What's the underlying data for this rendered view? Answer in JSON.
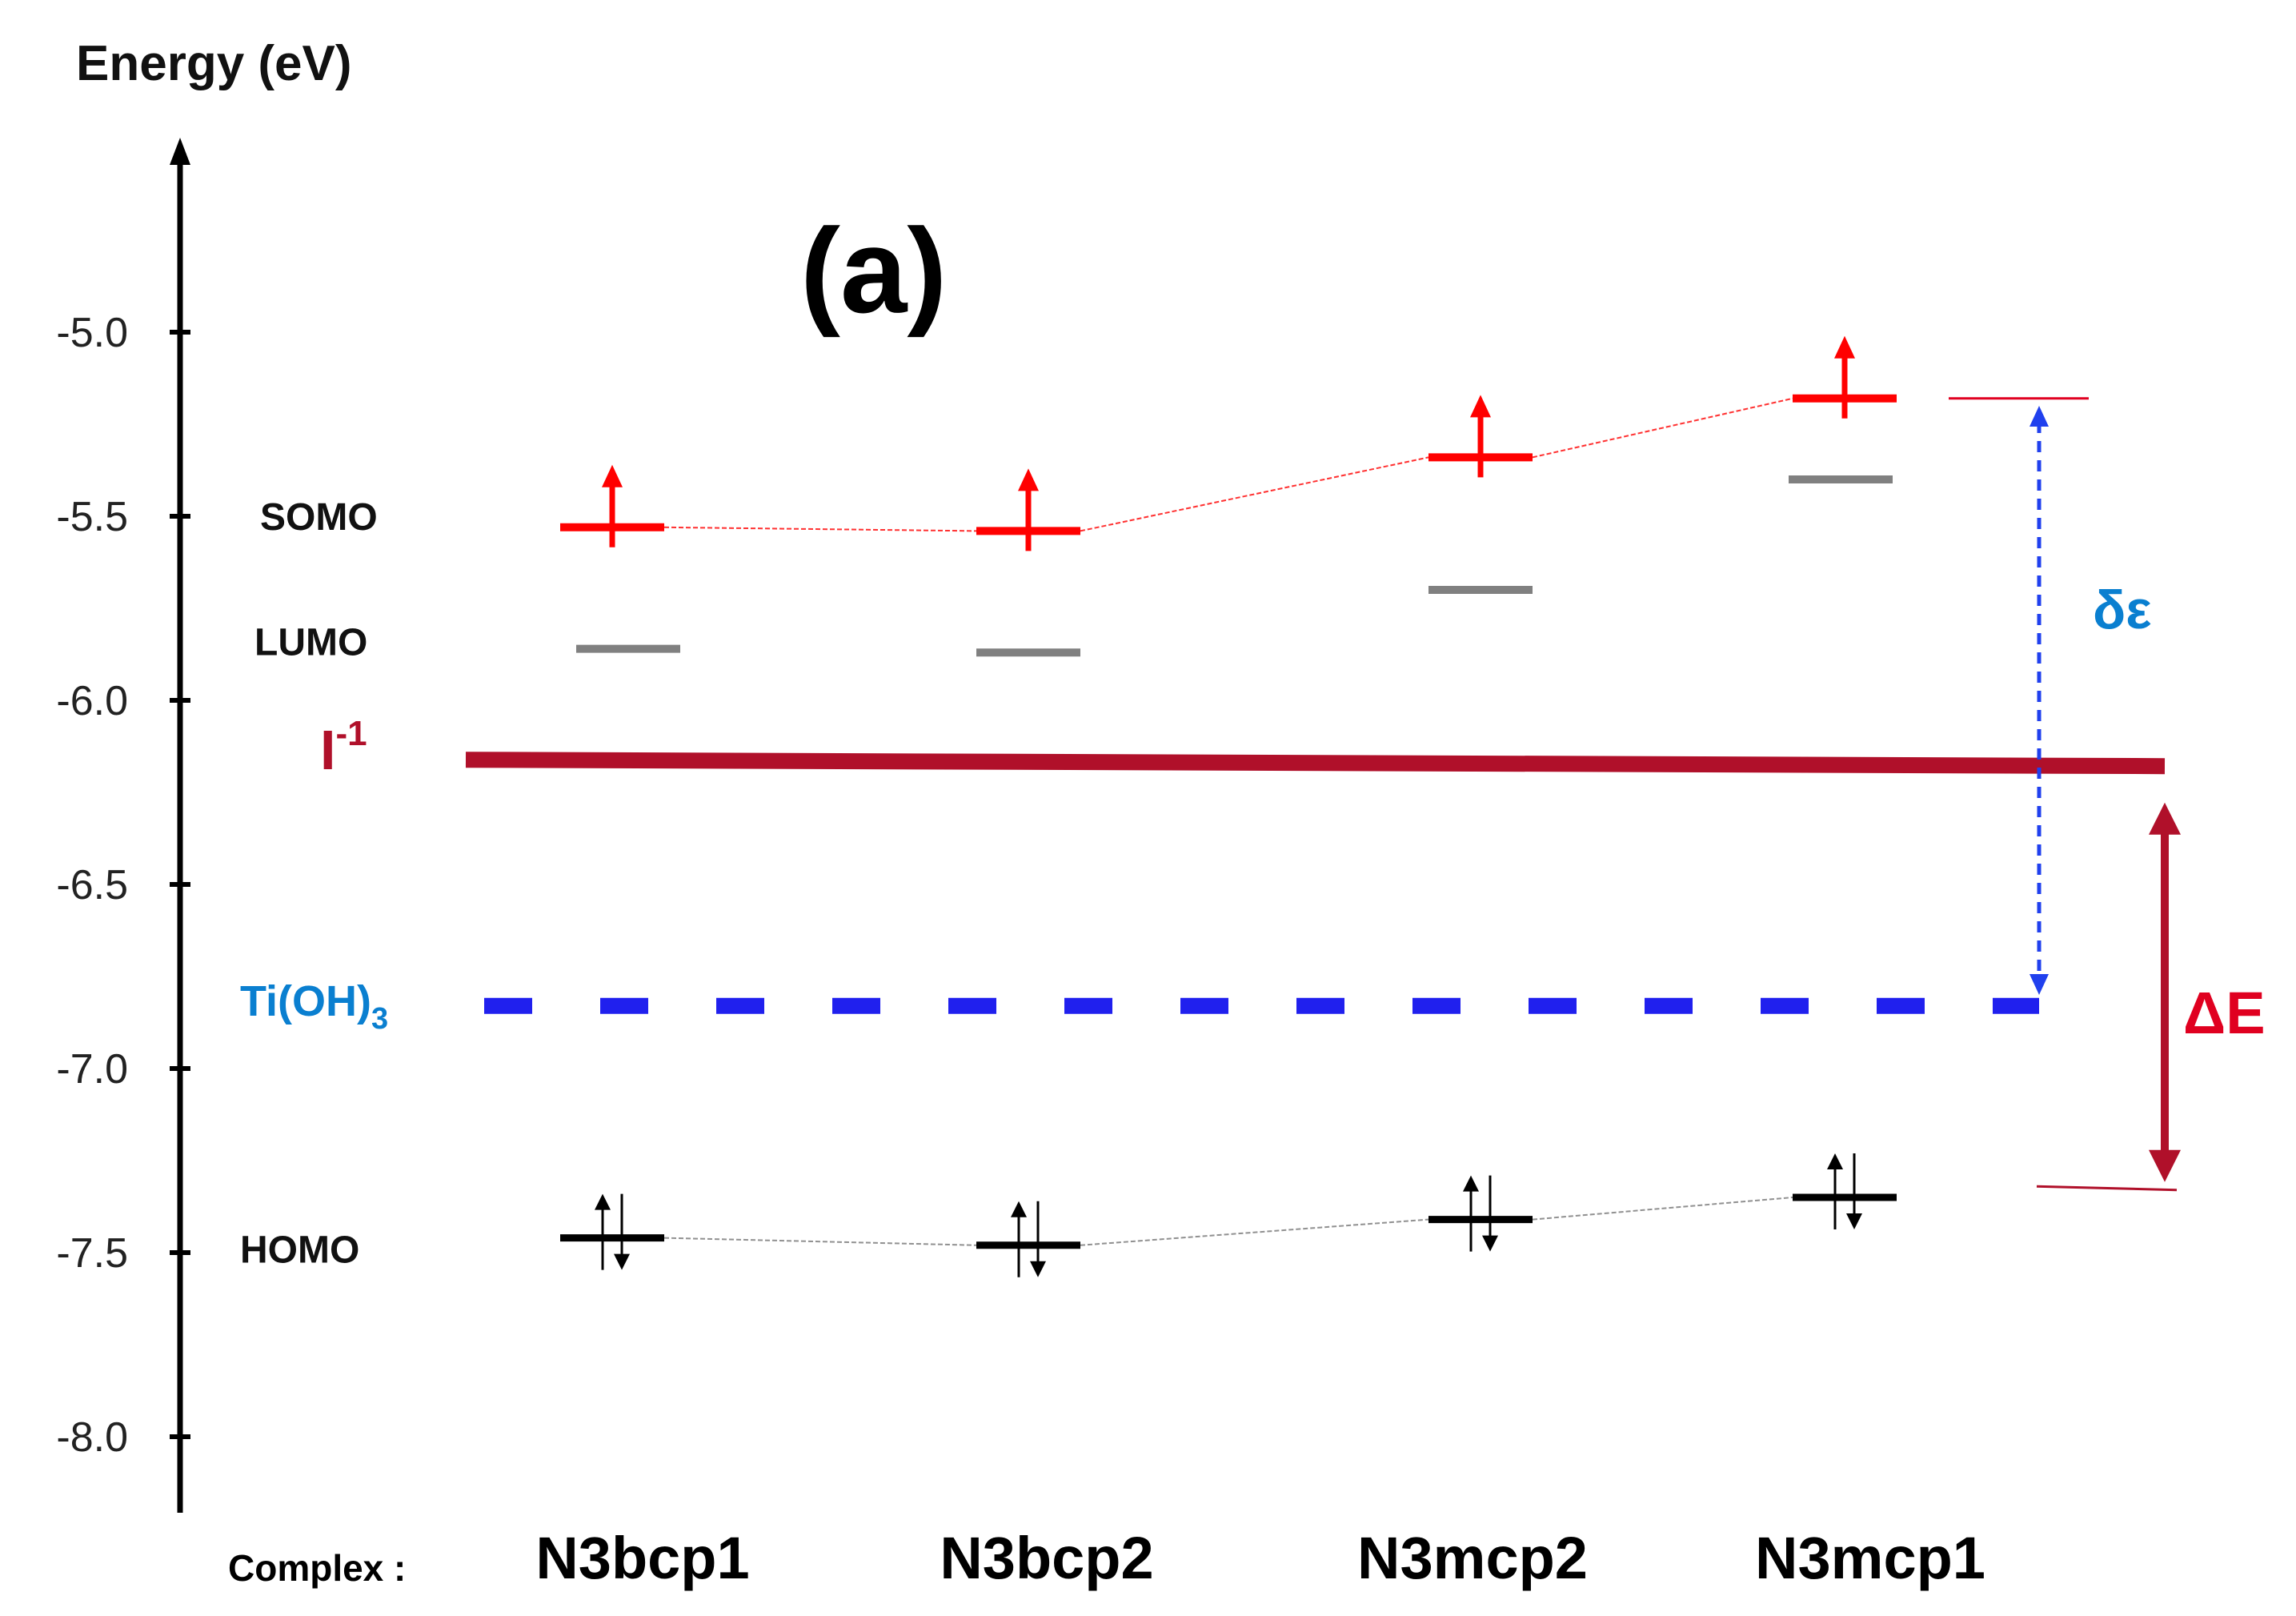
{
  "chart_data": {
    "type": "energy-level-diagram",
    "ylabel": "Energy (eV)",
    "panel_label": "(a)",
    "ylim": [
      -8.15,
      -4.5
    ],
    "yticks": [
      -5.0,
      -5.5,
      -6.0,
      -6.5,
      -7.0,
      -7.5,
      -8.0
    ],
    "ytick_labels": [
      "-5.0",
      "-5.5",
      "-6.0",
      "-6.5",
      "-7.0",
      "-7.5",
      "-8.0"
    ],
    "category_prefix": "Complex :",
    "categories": [
      "N3bcp1",
      "N3bcp2",
      "N3mcp2",
      "N3mcp1"
    ],
    "series": [
      {
        "name": "SOMO",
        "values": [
          -5.53,
          -5.54,
          -5.34,
          -5.18
        ],
        "color": "#ff0000",
        "electrons": "single-up"
      },
      {
        "name": "LUMO",
        "values": [
          -5.86,
          -5.87,
          -5.7,
          -5.4
        ],
        "color": "#808080",
        "electrons": "none"
      },
      {
        "name": "HOMO",
        "values": [
          -7.46,
          -7.48,
          -7.41,
          -7.35
        ],
        "color": "#000000",
        "electrons": "paired"
      }
    ],
    "reference_levels": [
      {
        "name": "I-1",
        "label_main": "I",
        "label_sup": "-1",
        "value": -6.17,
        "color": "#b0102a",
        "style": "solid"
      },
      {
        "name": "Ti(OH)3",
        "label_main": "Ti(OH)",
        "label_sub": "3",
        "value": -6.83,
        "color": "#2020ee",
        "style": "dashed",
        "label_color": "#0a7fd0"
      }
    ],
    "annotations": [
      {
        "name": "delta-epsilon",
        "label": "δε",
        "from": -5.2,
        "to": -6.8,
        "color": "#2040ee",
        "label_color": "#0a7fd0",
        "style": "dashed-double-arrow"
      },
      {
        "name": "delta-E",
        "label": "ΔE",
        "from": -6.18,
        "to": -7.33,
        "color": "#b0102a",
        "label_color": "#e00020",
        "style": "solid-double-arrow"
      }
    ],
    "legend": "none",
    "grid": false
  }
}
